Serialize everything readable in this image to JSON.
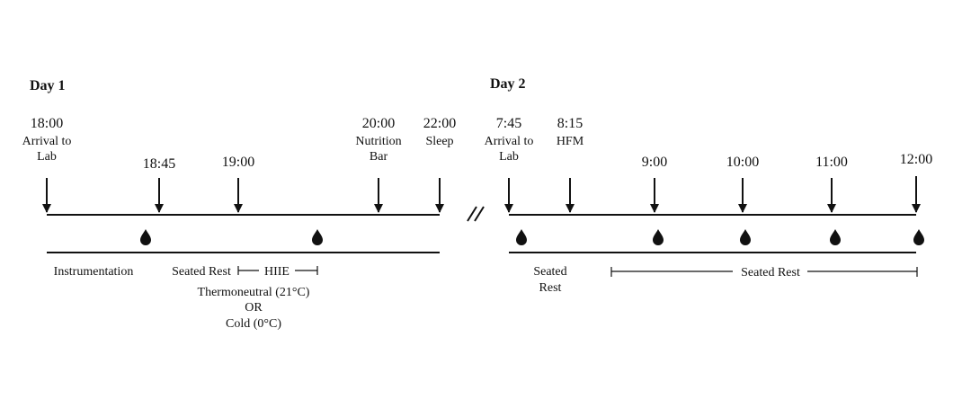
{
  "day1": {
    "title": "Day 1",
    "events": [
      {
        "time": "18:00",
        "label": [
          "Arrival to",
          "Lab"
        ]
      },
      {
        "time": "18:45"
      },
      {
        "time": "19:00"
      },
      {
        "time": "20:00",
        "label": [
          "Nutrition",
          "Bar"
        ]
      },
      {
        "time": "22:00",
        "label": [
          "Sleep"
        ]
      }
    ],
    "phases": {
      "instrumentation": "Instrumentation",
      "seated_rest": "Seated Rest",
      "hiie": "HIIE",
      "conditions": [
        "Thermoneutral (21°C)",
        "OR",
        "Cold (0°C)"
      ]
    }
  },
  "day2": {
    "title": "Day 2",
    "events": [
      {
        "time": "7:45",
        "label": [
          "Arrival to",
          "Lab"
        ]
      },
      {
        "time": "8:15",
        "label": [
          "HFM"
        ]
      },
      {
        "time": "9:00"
      },
      {
        "time": "10:00"
      },
      {
        "time": "11:00"
      },
      {
        "time": "12:00"
      }
    ],
    "phases": {
      "seated_rest_1": [
        "Seated",
        "Rest"
      ],
      "seated_rest_2": "Seated Rest"
    }
  }
}
